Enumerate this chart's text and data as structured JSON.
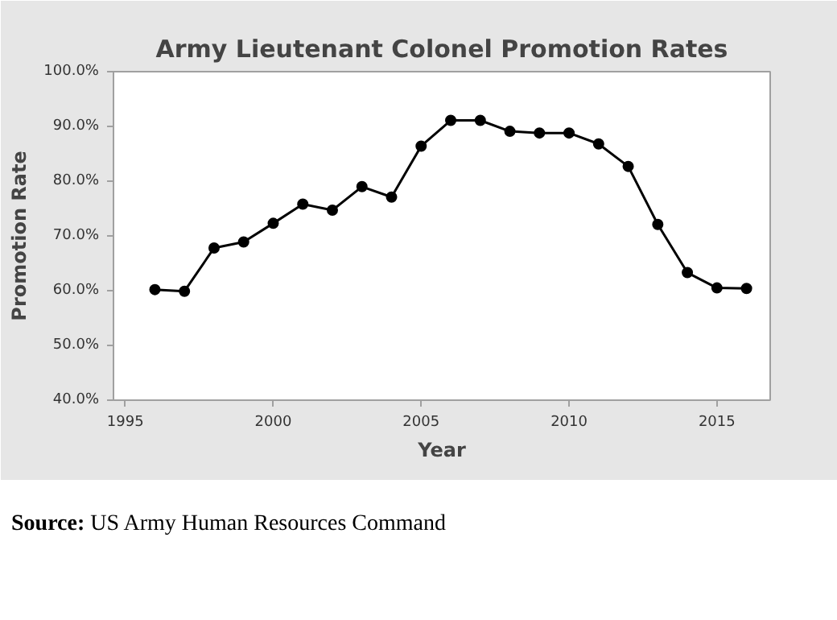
{
  "chart_data": {
    "type": "line",
    "title": "Army Lieutenant Colonel Promotion Rates",
    "xlabel": "Year",
    "ylabel": "Promotion Rate",
    "x": [
      1996,
      1997,
      1998,
      1999,
      2000,
      2001,
      2002,
      2003,
      2004,
      2005,
      2006,
      2007,
      2008,
      2009,
      2010,
      2011,
      2012,
      2013,
      2014,
      2015,
      2016
    ],
    "series": [
      {
        "color": "#000000",
        "values": [
          60.2,
          59.9,
          67.8,
          68.9,
          72.3,
          75.8,
          74.7,
          79.0,
          77.1,
          86.4,
          91.1,
          91.1,
          89.1,
          88.8,
          88.8,
          86.8,
          82.7,
          72.1,
          63.3,
          60.5,
          60.4
        ]
      }
    ],
    "xlim": [
      1994.6,
      2016.8
    ],
    "xticks": [
      1995,
      2000,
      2005,
      2010,
      2015
    ],
    "ylim": [
      40,
      100
    ],
    "yticks": [
      {
        "value": 40,
        "label": "40.0%"
      },
      {
        "value": 50,
        "label": "50.0%"
      },
      {
        "value": 60,
        "label": "60.0%"
      },
      {
        "value": 70,
        "label": "70.0%"
      },
      {
        "value": 80,
        "label": "80.0%"
      },
      {
        "value": 90,
        "label": "90.0%"
      },
      {
        "value": 100,
        "label": "100.0%"
      }
    ],
    "marker": "circle",
    "line_style": "solid",
    "grid": false,
    "annotations": [
      "Source: US Army Human Resources Command"
    ]
  }
}
